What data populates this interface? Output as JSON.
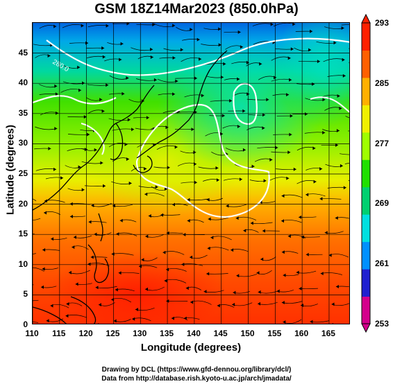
{
  "title": "GSM 18Z14Mar2023 (850.0hPa)",
  "xlabel": "Longitude (degrees)",
  "ylabel": "Latitude  (degrees)",
  "x_ticks": [
    "110",
    "115",
    "120",
    "125",
    "130",
    "135",
    "140",
    "145",
    "150",
    "155",
    "160",
    "165"
  ],
  "y_ticks": [
    "0",
    "5",
    "10",
    "15",
    "20",
    "25",
    "30",
    "35",
    "40",
    "45"
  ],
  "colorbar": {
    "labels": [
      "293",
      "285",
      "277",
      "269",
      "261",
      "253"
    ],
    "min": 253,
    "max": 293,
    "colors": [
      "#d4008c",
      "#2020d0",
      "#0090ff",
      "#00e0e0",
      "#00d070",
      "#20e000",
      "#a0ff00",
      "#f0f000",
      "#ffb000",
      "#ff6000",
      "#ff2000"
    ]
  },
  "contour_label": "280.0",
  "credits": {
    "line1": "Drawing by DCL (https://www.gfd-dennou.org/library/dcl/)",
    "line2": "Data from http://database.rish.kyoto-u.ac.jp/arch/jmadata/"
  },
  "map": {
    "lon_range": [
      110,
      169
    ],
    "lat_range": [
      0,
      50
    ],
    "variable_range_k": [
      253,
      293
    ]
  }
}
